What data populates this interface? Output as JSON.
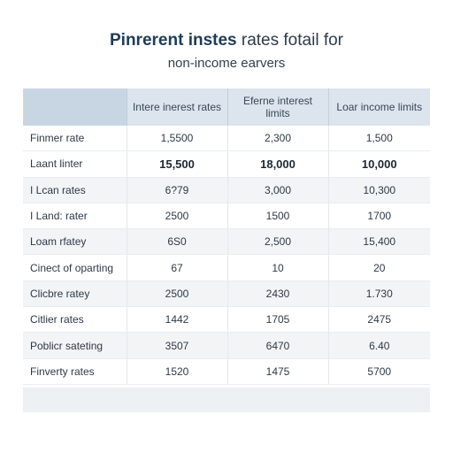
{
  "title": {
    "line1_strong": "Pinrerent instes",
    "line1_light": " rates fotail for",
    "line2": "non-income earvers"
  },
  "table": {
    "columns": [
      "",
      "Intere inerest rates",
      "Eferne interest limits",
      "Loar income limits"
    ],
    "rows": [
      {
        "label": "Finmer rate",
        "values": [
          "1,5500",
          "2,300",
          "1,500"
        ]
      },
      {
        "label": "Laant linter",
        "values": [
          "15,500",
          "18,000",
          "10,000"
        ]
      },
      {
        "label": "I Lcan rates",
        "values": [
          "6?79",
          "3,000",
          "10,300"
        ]
      },
      {
        "label": "I Land: rater",
        "values": [
          "2500",
          "1500",
          "1700"
        ]
      },
      {
        "label": "Loam rfatey",
        "values": [
          "6S0",
          "2,500",
          "15,400"
        ]
      },
      {
        "label": "Cinect of oparting",
        "values": [
          "67",
          "10",
          "20"
        ]
      },
      {
        "label": "Clicbre ratey",
        "values": [
          "2500",
          "2430",
          "1.730"
        ]
      },
      {
        "label": "Citlier rates",
        "values": [
          "1442",
          "1705",
          "2475"
        ]
      },
      {
        "label": "Poblicr sateting",
        "values": [
          "3507",
          "6470",
          "6.40"
        ]
      },
      {
        "label": "Finverty rates",
        "values": [
          "1520",
          "1475",
          "5700"
        ]
      }
    ]
  }
}
